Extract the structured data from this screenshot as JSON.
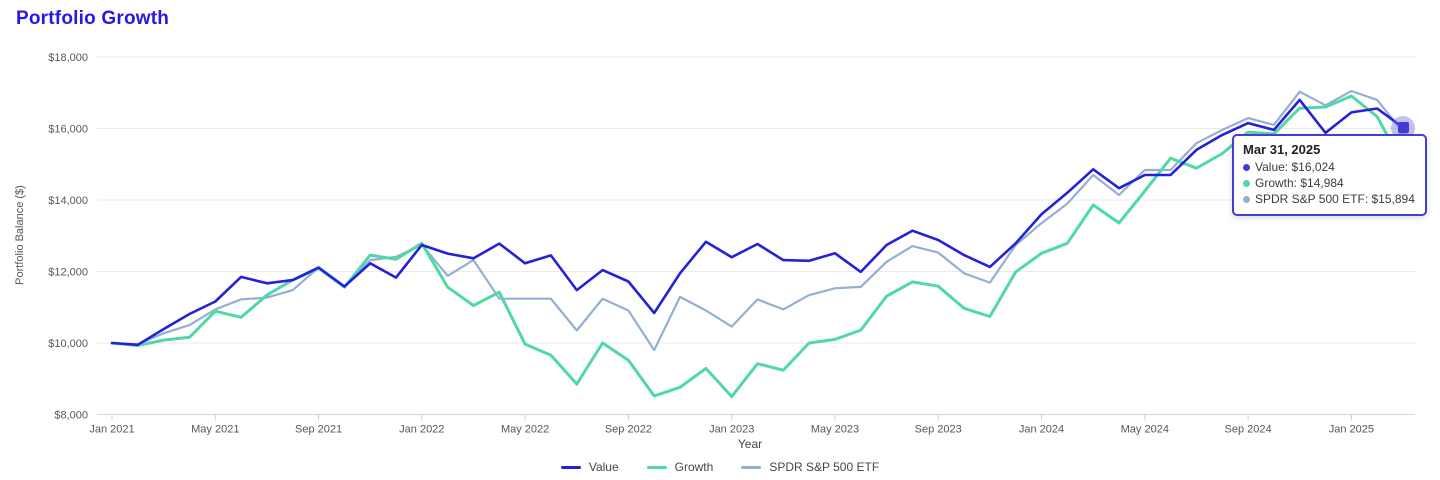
{
  "page": {
    "title": "Portfolio Growth"
  },
  "colors": {
    "title": "#2b16e8",
    "value_line": "#2621d9",
    "growth_line": "#50d9a6",
    "spdr_line": "#95afd3",
    "tooltip_border": "#443fd0",
    "grid": "#ebebeb",
    "axis": "#cdd2e8",
    "tick_text": "#57585c"
  },
  "chart_data": {
    "type": "line",
    "title": "Portfolio Growth",
    "xlabel": "Year",
    "ylabel": "Portfolio Balance ($)",
    "ylim": [
      8000,
      18000
    ],
    "grid": true,
    "legend_position": "bottom",
    "ytick_values": [
      8000,
      10000,
      12000,
      14000,
      16000,
      18000
    ],
    "ytick_labels": [
      "$8,000",
      "$10,000",
      "$12,000",
      "$14,000",
      "$16,000",
      "$18,000"
    ],
    "xticks": [
      {
        "i": 0,
        "label": "Jan 2021"
      },
      {
        "i": 4,
        "label": "May 2021"
      },
      {
        "i": 8,
        "label": "Sep 2021"
      },
      {
        "i": 12,
        "label": "Jan 2022"
      },
      {
        "i": 16,
        "label": "May 2022"
      },
      {
        "i": 20,
        "label": "Sep 2022"
      },
      {
        "i": 24,
        "label": "Jan 2023"
      },
      {
        "i": 28,
        "label": "May 2023"
      },
      {
        "i": 32,
        "label": "Sep 2023"
      },
      {
        "i": 36,
        "label": "Jan 2024"
      },
      {
        "i": 40,
        "label": "May 2024"
      },
      {
        "i": 44,
        "label": "Sep 2024"
      },
      {
        "i": 48,
        "label": "Jan 2025"
      }
    ],
    "x": [
      "Jan 2021",
      "Feb 2021",
      "Mar 2021",
      "Apr 2021",
      "May 2021",
      "Jun 2021",
      "Jul 2021",
      "Aug 2021",
      "Sep 2021",
      "Oct 2021",
      "Nov 2021",
      "Dec 2021",
      "Jan 2022",
      "Feb 2022",
      "Mar 2022",
      "Apr 2022",
      "May 2022",
      "Jun 2022",
      "Jul 2022",
      "Aug 2022",
      "Sep 2022",
      "Oct 2022",
      "Nov 2022",
      "Dec 2022",
      "Jan 2023",
      "Feb 2023",
      "Mar 2023",
      "Apr 2023",
      "May 2023",
      "Jun 2023",
      "Jul 2023",
      "Aug 2023",
      "Sep 2023",
      "Oct 2023",
      "Nov 2023",
      "Dec 2023",
      "Jan 2024",
      "Feb 2024",
      "Mar 2024",
      "Apr 2024",
      "May 2024",
      "Jun 2024",
      "Jul 2024",
      "Aug 2024",
      "Sep 2024",
      "Oct 2024",
      "Nov 2024",
      "Dec 2024",
      "Jan 2025",
      "Feb 2025",
      "Mar 2025"
    ],
    "series": [
      {
        "name": "Value",
        "color": "#2621d9",
        "values": [
          10000,
          9950,
          10390,
          10810,
          11160,
          11850,
          11670,
          11760,
          12110,
          11580,
          12230,
          11830,
          12740,
          12500,
          12370,
          12780,
          12230,
          12450,
          11480,
          12040,
          11720,
          10840,
          11950,
          12830,
          12400,
          12770,
          12320,
          12300,
          12510,
          11990,
          12740,
          13140,
          12880,
          12460,
          12130,
          12790,
          13600,
          14200,
          14860,
          14330,
          14700,
          14700,
          15400,
          15820,
          16150,
          15960,
          16800,
          15880,
          16450,
          16560,
          16024
        ]
      },
      {
        "name": "Growth",
        "color": "#50d9a6",
        "values": [
          10000,
          9930,
          10080,
          10160,
          10890,
          10720,
          11340,
          11760,
          12090,
          11560,
          12460,
          12340,
          12790,
          11560,
          11050,
          11420,
          9970,
          9660,
          8850,
          10000,
          9520,
          8520,
          8760,
          9290,
          8500,
          9420,
          9240,
          10000,
          10100,
          10360,
          11310,
          11710,
          11590,
          10970,
          10740,
          11990,
          12510,
          12790,
          13860,
          13360,
          14250,
          15170,
          14890,
          15300,
          15900,
          15850,
          16570,
          16600,
          16910,
          16330,
          14984
        ]
      },
      {
        "name": "SPDR S&P 500 ETF",
        "color": "#95afd3",
        "values": [
          10000,
          9960,
          10270,
          10500,
          10940,
          11220,
          11270,
          11480,
          12110,
          11590,
          12320,
          12410,
          12750,
          11880,
          12320,
          11240,
          11240,
          11240,
          10350,
          11240,
          10910,
          9800,
          11290,
          10910,
          10460,
          11220,
          10940,
          11340,
          11530,
          11570,
          12270,
          12710,
          12530,
          11950,
          11690,
          12740,
          13350,
          13900,
          14700,
          14140,
          14840,
          14840,
          15590,
          15960,
          16290,
          16100,
          17030,
          16650,
          17050,
          16800,
          15894
        ]
      }
    ]
  },
  "tooltip": {
    "date": "Mar 31, 2025",
    "items": [
      {
        "name": "Value",
        "text": "Value: $16,024",
        "value": 16024,
        "color": "#443dd0"
      },
      {
        "name": "Growth",
        "text": "Growth: $14,984",
        "value": 14984,
        "color": "#50d9a6"
      },
      {
        "name": "SPDR S&P 500 ETF",
        "text": "SPDR S&P 500 ETF: $15,894",
        "value": 15894,
        "color": "#95afd3"
      }
    ]
  }
}
